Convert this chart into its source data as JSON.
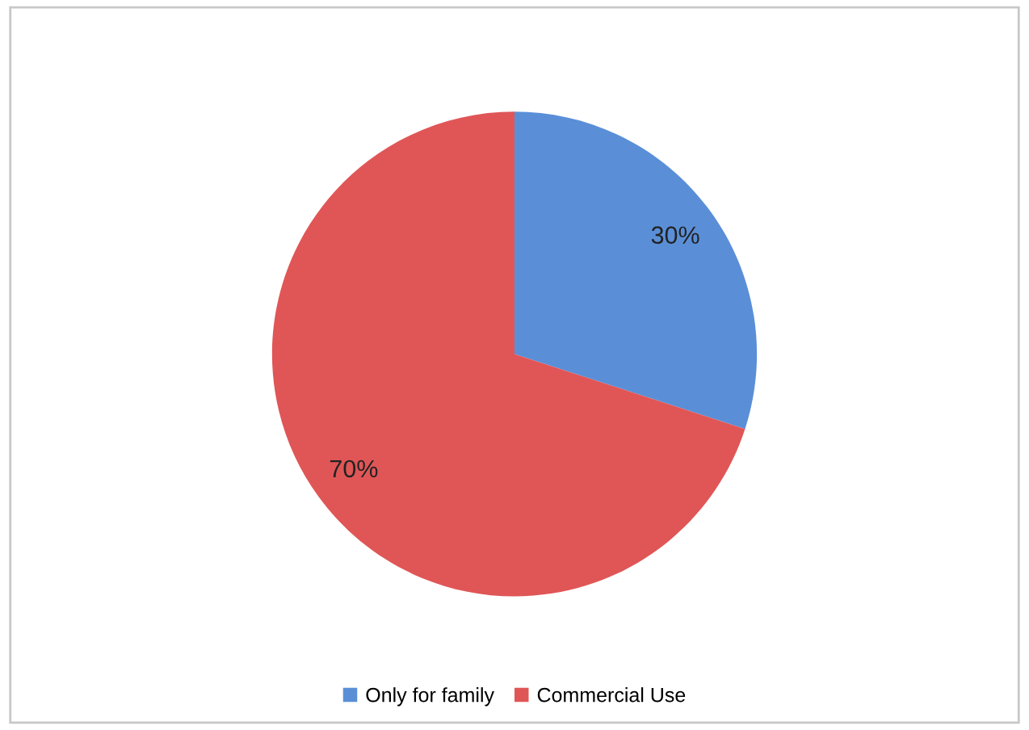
{
  "chart_data": {
    "type": "pie",
    "categories": [
      "Only for family",
      "Commercial Use"
    ],
    "values": [
      30,
      70
    ],
    "colors": [
      "#5a8fd8",
      "#e05656"
    ],
    "data_labels": true,
    "value_labels": [
      "30%",
      "70%"
    ],
    "legend": "bottom"
  }
}
